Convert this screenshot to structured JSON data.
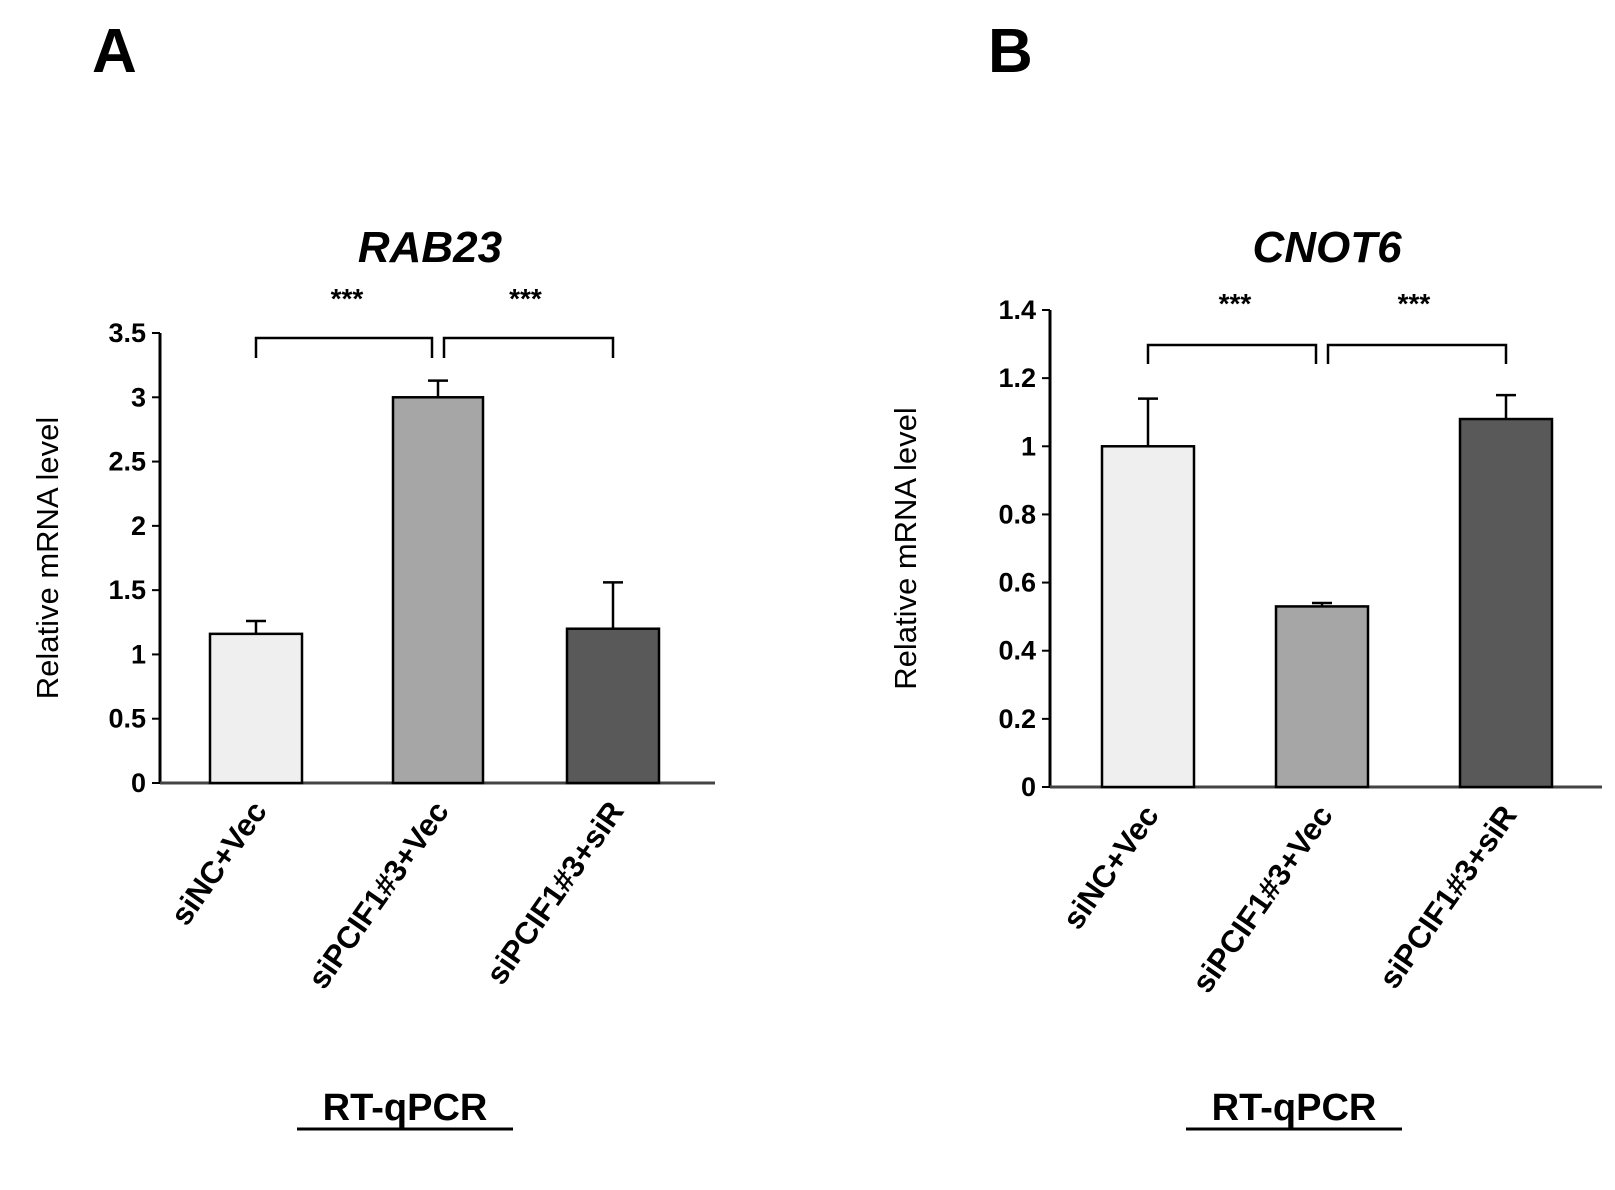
{
  "charts": [
    {
      "panel": "A",
      "method": "RT-qPCR",
      "ytick_labels": [
        "0",
        "0.5",
        "1",
        "1.5",
        "2",
        "2.5",
        "3",
        "3.5"
      ],
      "significance": [
        "***",
        "***"
      ]
    },
    {
      "panel": "B",
      "method": "RT-qPCR",
      "ytick_labels": [
        "0",
        "0.2",
        "0.4",
        "0.6",
        "0.8",
        "1",
        "1.2",
        "1.4"
      ],
      "significance": [
        "***",
        "***"
      ]
    }
  ],
  "chart_data": [
    {
      "type": "bar",
      "title": "RAB23",
      "xlabel": "",
      "ylabel": "Relative mRNA level",
      "categories": [
        "siNC+Vec",
        "siPCIF1#3+Vec",
        "siPCIF1#3+siR"
      ],
      "values": [
        1.16,
        3.0,
        1.2
      ],
      "errors": [
        0.1,
        0.13,
        0.36
      ],
      "ylim": [
        0,
        3.5
      ],
      "yticks": [
        0,
        0.5,
        1,
        1.5,
        2,
        2.5,
        3,
        3.5
      ],
      "colors": [
        "#efefef",
        "#a6a6a6",
        "#595959"
      ],
      "grid": false,
      "comparisons": [
        {
          "from": 0,
          "to": 1,
          "label": "***"
        },
        {
          "from": 1,
          "to": 2,
          "label": "***"
        }
      ]
    },
    {
      "type": "bar",
      "title": "CNOT6",
      "xlabel": "",
      "ylabel": "Relative mRNA level",
      "categories": [
        "siNC+Vec",
        "siPCIF1#3+Vec",
        "siPCIF1#3+siR"
      ],
      "values": [
        1.0,
        0.53,
        1.08
      ],
      "errors": [
        0.14,
        0.01,
        0.07
      ],
      "ylim": [
        0,
        1.4
      ],
      "yticks": [
        0,
        0.2,
        0.4,
        0.6,
        0.8,
        1,
        1.2,
        1.4
      ],
      "colors": [
        "#efefef",
        "#a6a6a6",
        "#595959"
      ],
      "grid": false,
      "comparisons": [
        {
          "from": 0,
          "to": 1,
          "label": "***"
        },
        {
          "from": 1,
          "to": 2,
          "label": "***"
        }
      ]
    }
  ]
}
